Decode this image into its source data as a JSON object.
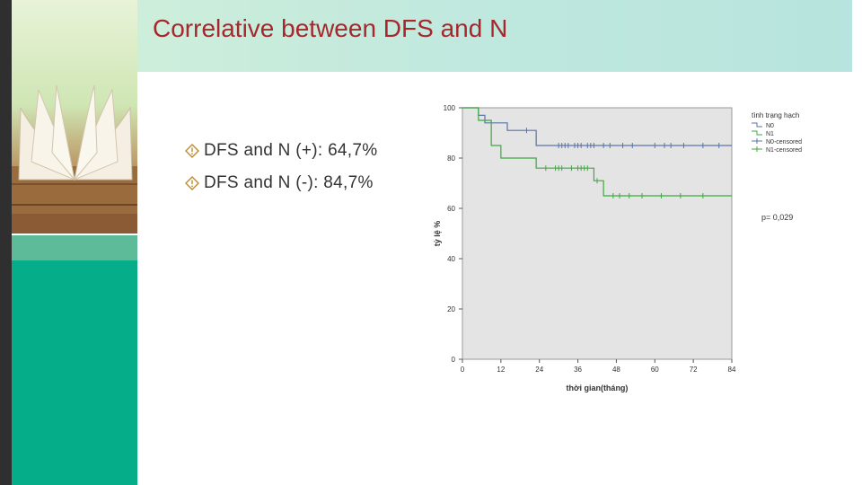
{
  "slide": {
    "title": "Correlative between DFS and N"
  },
  "bullets": [
    {
      "text": "DFS and N (+): 64,7%"
    },
    {
      "text": "DFS and N (-): 84,7%"
    }
  ],
  "colors": {
    "title": "#a6282c",
    "accent": "#06ad89",
    "n0": "#5a74a8",
    "n1": "#3fa83f",
    "plot_bg": "#e4e4e4"
  },
  "chart_data": {
    "type": "line",
    "subtype": "kaplan-meier",
    "xlabel": "thời gian(tháng)",
    "ylabel": "tỷ lệ %",
    "xlim": [
      0,
      84
    ],
    "ylim": [
      0,
      100
    ],
    "x_ticks": [
      "0",
      "12",
      "24",
      "36",
      "48",
      "60",
      "72",
      "84"
    ],
    "y_ticks": [
      "0",
      "20",
      "40",
      "60",
      "80",
      "100"
    ],
    "legend_title": "tình trạng hạch",
    "legend": [
      "N0",
      "N1",
      "N0-censored",
      "N1-censored"
    ],
    "p_value": "p= 0,029",
    "series": [
      {
        "name": "N0",
        "steps": [
          [
            0,
            100
          ],
          [
            5,
            97
          ],
          [
            7,
            94
          ],
          [
            13,
            94
          ],
          [
            14,
            91
          ],
          [
            22,
            91
          ],
          [
            23,
            85
          ],
          [
            84,
            85
          ]
        ],
        "censored": [
          20,
          30,
          31,
          32,
          33,
          35,
          36,
          37,
          39,
          40,
          41,
          44,
          46,
          50,
          53,
          60,
          63,
          65,
          69,
          75,
          80
        ]
      },
      {
        "name": "N1",
        "steps": [
          [
            0,
            100
          ],
          [
            5,
            95
          ],
          [
            8,
            95
          ],
          [
            9,
            85
          ],
          [
            11,
            85
          ],
          [
            12,
            80
          ],
          [
            22,
            80
          ],
          [
            23,
            76
          ],
          [
            40,
            76
          ],
          [
            41,
            71
          ],
          [
            43,
            71
          ],
          [
            44,
            65
          ],
          [
            84,
            65
          ]
        ],
        "censored": [
          26,
          29,
          30,
          31,
          34,
          36,
          37,
          38,
          39,
          42,
          47,
          49,
          52,
          56,
          62,
          68,
          75
        ]
      }
    ]
  }
}
